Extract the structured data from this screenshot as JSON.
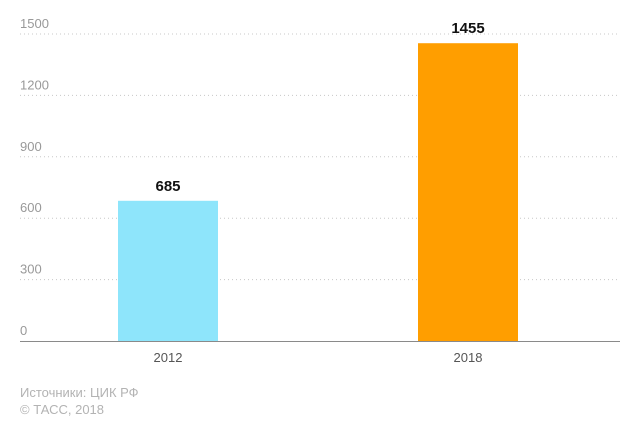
{
  "chart_data": {
    "type": "bar",
    "categories": [
      "2012",
      "2018"
    ],
    "values": [
      685,
      1455
    ],
    "data_labels": [
      "685",
      "1455"
    ],
    "colors": [
      "#8ee5fb",
      "#ff9e00"
    ],
    "ylim": [
      0,
      1500
    ],
    "yticks": [
      0,
      300,
      600,
      900,
      1200,
      1500
    ],
    "ytick_labels": [
      "0",
      "300",
      "600",
      "900",
      "1200",
      "1500"
    ],
    "grid": true,
    "title": "",
    "xlabel": "",
    "ylabel": ""
  },
  "footer": {
    "source": "Источники: ЦИК РФ",
    "copyright": "© ТАСС, 2018"
  }
}
